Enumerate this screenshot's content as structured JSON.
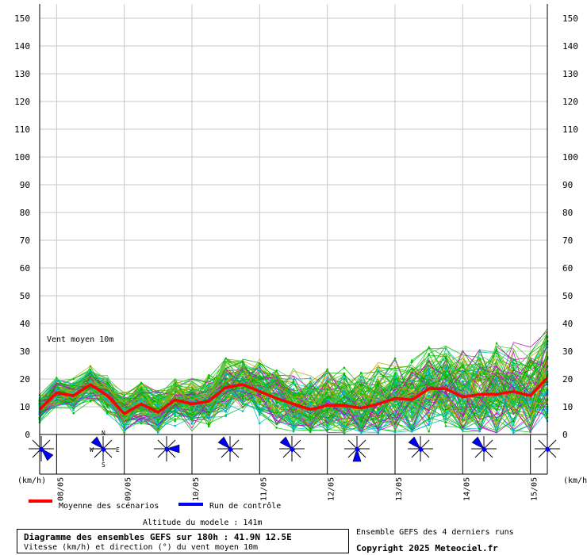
{
  "chart_data": {
    "type": "line",
    "title": "Diagramme des ensembles GEFS sur 180h : 41.9N 12.5E",
    "subtitle": "Vitesse (km/h) et direction (°) du vent moyen 10m",
    "panel_label": "Vent moyen 10m",
    "ylabel_left": "(km/h)",
    "ylabel_right": "(km/h)",
    "ylim": [
      0,
      155
    ],
    "yticks": [
      0,
      10,
      20,
      30,
      40,
      50,
      60,
      70,
      80,
      90,
      100,
      110,
      120,
      130,
      140,
      150
    ],
    "grid": true,
    "legend_position": "bottom-left",
    "x_labels": [
      "08/05",
      "09/05",
      "10/05",
      "11/05",
      "12/05",
      "13/05",
      "14/05",
      "15/05"
    ],
    "x_hours": [
      0,
      6,
      12,
      18,
      24,
      30,
      36,
      42,
      48,
      54,
      60,
      66,
      72,
      78,
      84,
      90,
      96,
      102,
      108,
      114,
      120,
      126,
      132,
      138,
      144,
      150,
      156,
      162,
      168,
      174,
      180
    ],
    "series": [
      {
        "name": "Moyenne des scénarios",
        "color": "#ff0000",
        "values": [
          9,
          15,
          14,
          18,
          14,
          7.5,
          11,
          8,
          12.5,
          11,
          12,
          17,
          18,
          15.5,
          13,
          11,
          9,
          10.5,
          10.5,
          9.5,
          11,
          13,
          12.5,
          16.5,
          16.5,
          13.5,
          14.5,
          14.5,
          15.5,
          14,
          20.5
        ]
      },
      {
        "name": "Run de contrôle",
        "color": "#0000ff",
        "values": []
      }
    ],
    "ensemble_members": 120,
    "ensemble_colors": [
      "#00c000",
      "#00aa00",
      "#c000c0",
      "#00bbcc",
      "#bbaa00",
      "#3cc83c"
    ],
    "wind_roses": [
      "E-S",
      "N-W",
      "E",
      "N-W",
      "N-W",
      "S",
      "N-W",
      "N-W",
      "W-E"
    ],
    "compass_labels": [
      "N",
      "E",
      "S",
      "W"
    ]
  },
  "footer": {
    "altitude": "Altitude du modele : 141m",
    "ensemble_note": "Ensemble GEFS des 4 derniers runs",
    "copyright": "Copyright 2025 Meteociel.fr"
  }
}
